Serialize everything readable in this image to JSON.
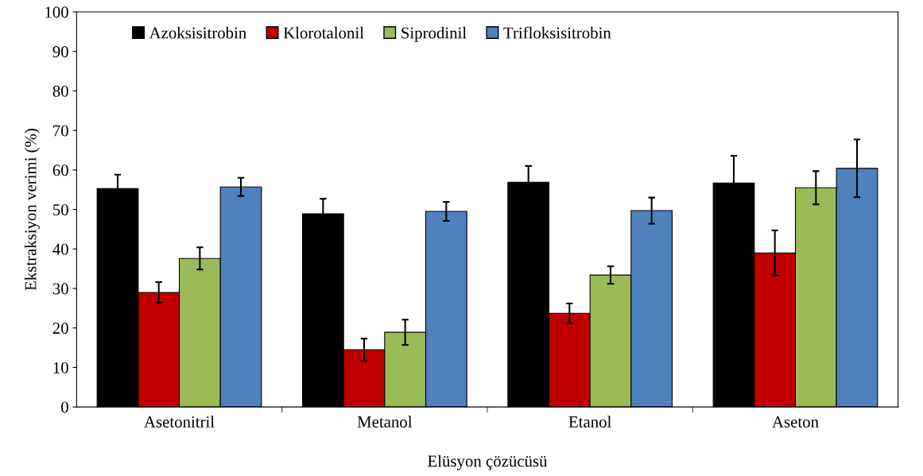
{
  "chart_data": {
    "type": "bar",
    "xlabel": "Elüsyon çözücüsü",
    "ylabel": "Ekstraksiyon verimi (%)",
    "categories": [
      "Asetonitril",
      "Metanol",
      "Etanol",
      "Aseton"
    ],
    "series": [
      {
        "name": "Azoksisitrobin",
        "color": "#000000",
        "values": [
          55.3,
          48.9,
          56.9,
          56.7
        ],
        "errors": [
          3.5,
          3.8,
          4.1,
          6.9
        ]
      },
      {
        "name": "Klorotalonil",
        "color": "#c00000",
        "values": [
          29.0,
          14.5,
          23.7,
          39.0
        ],
        "errors": [
          2.6,
          2.8,
          2.5,
          5.7
        ]
      },
      {
        "name": "Siprodinil",
        "color": "#9bbb59",
        "values": [
          37.6,
          18.9,
          33.4,
          55.5
        ],
        "errors": [
          2.8,
          3.2,
          2.2,
          4.2
        ]
      },
      {
        "name": "Trifloksisitrobin",
        "color": "#4f81bd",
        "values": [
          55.7,
          49.5,
          49.7,
          60.4
        ],
        "errors": [
          2.3,
          2.4,
          3.3,
          7.3
        ]
      }
    ],
    "ylim": [
      0,
      100
    ],
    "yticks": [
      0,
      10,
      20,
      30,
      40,
      50,
      60,
      70,
      80,
      90,
      100
    ],
    "grid": false,
    "legend": "top left"
  }
}
